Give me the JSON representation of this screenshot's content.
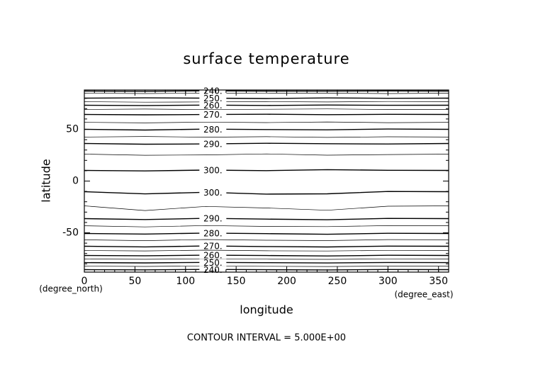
{
  "chart_data": {
    "type": "contour",
    "title": "surface temperature",
    "x_label": "longitude",
    "y_label": "latitude",
    "x_unit": "(degree_east)",
    "y_unit": "(degree_north)",
    "footer": "CONTOUR INTERVAL = 5.000E+00",
    "color": "#000000",
    "xlim": [
      0,
      360
    ],
    "ylim": [
      -88,
      88
    ],
    "xticks": [
      0,
      50,
      100,
      150,
      200,
      250,
      300,
      350
    ],
    "yticks": [
      -50,
      0,
      50
    ],
    "x": [
      0,
      60,
      120,
      180,
      240,
      300,
      360
    ],
    "series": [
      {
        "level": 240,
        "level_label": "240.",
        "values": [
          87.0,
          86.8,
          87.2,
          87.0,
          86.9,
          87.1,
          87.0
        ]
      },
      {
        "level": 245,
        "values": [
          84.9,
          84.6,
          84.9,
          84.7,
          84.9,
          84.6,
          84.9
        ]
      },
      {
        "level": 250,
        "level_label": "250.",
        "values": [
          80.1,
          80.4,
          80.1,
          79.8,
          80.3,
          80.0,
          80.1
        ]
      },
      {
        "level": 255,
        "values": [
          76.7,
          76.2,
          76.5,
          76.8,
          76.4,
          76.9,
          76.7
        ]
      },
      {
        "level": 260,
        "level_label": "260.",
        "values": [
          73.3,
          73.0,
          73.4,
          73.1,
          73.5,
          73.2,
          73.3
        ]
      },
      {
        "level": 265,
        "values": [
          69.2,
          69.6,
          69.0,
          69.4,
          69.7,
          69.1,
          69.2
        ]
      },
      {
        "level": 270,
        "level_label": "270.",
        "values": [
          64.4,
          64.0,
          64.3,
          64.6,
          64.2,
          64.5,
          64.4
        ]
      },
      {
        "level": 275,
        "values": [
          56.8,
          56.2,
          57.0,
          56.5,
          57.1,
          56.4,
          56.8
        ]
      },
      {
        "level": 280,
        "level_label": "280.",
        "values": [
          50.0,
          49.3,
          50.2,
          49.8,
          49.5,
          50.3,
          50.0
        ]
      },
      {
        "level": 285,
        "values": [
          42.5,
          43.1,
          42.4,
          42.9,
          42.2,
          42.8,
          42.5
        ]
      },
      {
        "level": 290,
        "level_label": "290.",
        "values": [
          36.3,
          35.6,
          35.9,
          36.5,
          36.1,
          35.8,
          36.3
        ]
      },
      {
        "level": 295,
        "values": [
          26.0,
          24.9,
          25.3,
          26.2,
          25.0,
          25.6,
          26.0
        ]
      },
      {
        "level": 300,
        "level_label": "300.",
        "values": [
          10.3,
          9.8,
          10.6,
          10.1,
          11.0,
          10.4,
          10.3
        ]
      },
      {
        "level": 300,
        "level_label": "300.",
        "values": [
          -10.3,
          -12.4,
          -10.8,
          -12.6,
          -12.3,
          -10.1,
          -10.3
        ]
      },
      {
        "level": 295,
        "values": [
          -24.0,
          -28.5,
          -24.5,
          -26.0,
          -28.2,
          -24.3,
          -24.0
        ]
      },
      {
        "level": 290,
        "level_label": "290.",
        "values": [
          -36.3,
          -37.2,
          -36.0,
          -36.8,
          -37.4,
          -36.1,
          -36.3
        ]
      },
      {
        "level": 285,
        "values": [
          -43.2,
          -44.3,
          -43.0,
          -43.8,
          -44.0,
          -43.1,
          -43.2
        ]
      },
      {
        "level": 280,
        "level_label": "280.",
        "values": [
          -50.7,
          -51.2,
          -50.3,
          -50.8,
          -51.4,
          -50.5,
          -50.7
        ]
      },
      {
        "level": 275,
        "values": [
          -56.8,
          -57.6,
          -56.5,
          -57.2,
          -57.5,
          -56.6,
          -56.8
        ]
      },
      {
        "level": 270,
        "level_label": "270.",
        "values": [
          -63.0,
          -63.6,
          -62.7,
          -63.3,
          -63.7,
          -62.9,
          -63.0
        ]
      },
      {
        "level": 265,
        "values": [
          -67.1,
          -67.5,
          -66.8,
          -67.4,
          -67.6,
          -67.0,
          -67.1
        ]
      },
      {
        "level": 260,
        "level_label": "260.",
        "values": [
          -71.9,
          -72.2,
          -71.6,
          -72.0,
          -72.4,
          -71.7,
          -71.9
        ]
      },
      {
        "level": 255,
        "values": [
          -75.3,
          -75.6,
          -75.1,
          -75.5,
          -75.7,
          -75.2,
          -75.3
        ]
      },
      {
        "level": 250,
        "level_label": "250.",
        "values": [
          -78.8,
          -79.1,
          -78.6,
          -78.9,
          -79.2,
          -78.7,
          -78.8
        ]
      },
      {
        "level": 245,
        "values": [
          -82.2,
          -82.5,
          -82.0,
          -82.4,
          -82.6,
          -82.1,
          -82.2
        ]
      },
      {
        "level": 240,
        "level_label": "240.",
        "values": [
          -85.6,
          -85.8,
          -85.4,
          -85.7,
          -85.9,
          -85.5,
          -85.6
        ]
      }
    ]
  }
}
